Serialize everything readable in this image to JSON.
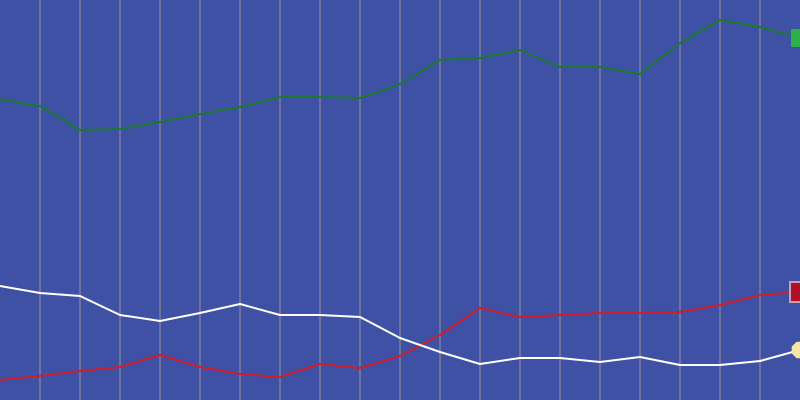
{
  "chart_data": {
    "type": "line",
    "title": "",
    "xlabel": "",
    "ylabel": "",
    "grid": {
      "vertical": true,
      "horizontal": false
    },
    "legend": "none",
    "background": "#3f51a5",
    "grid_color": "#7a7f9a",
    "x": [
      0,
      1,
      2,
      3,
      4,
      5,
      6,
      7,
      8,
      9,
      10,
      11,
      12,
      13,
      14,
      15,
      16,
      17,
      18,
      19,
      20
    ],
    "xlim": [
      0,
      20
    ],
    "ylim": [
      0,
      400
    ],
    "series": [
      {
        "color": "#1b7a2e",
        "marker_color": "#2bb04a",
        "end_marker": "square",
        "values": [
          301,
          294,
          270,
          271,
          278,
          286,
          293,
          303,
          303,
          302,
          316,
          340,
          342,
          350,
          333,
          333,
          326,
          357,
          380,
          373,
          362
        ]
      },
      {
        "color": "#d01c2c",
        "marker_color": "#b0102a",
        "end_marker": "square-outlined",
        "values": [
          20,
          24,
          29,
          33,
          45,
          33,
          26,
          23,
          36,
          32,
          44,
          65,
          92,
          83,
          85,
          87,
          87,
          88,
          95,
          105,
          108
        ]
      },
      {
        "color": "#ffffff",
        "marker_color": "#f6e3a8",
        "end_marker": "octagon",
        "values": [
          114,
          107,
          104,
          85,
          79,
          87,
          96,
          85,
          85,
          83,
          62,
          48,
          36,
          42,
          42,
          38,
          43,
          35,
          35,
          39,
          50
        ]
      }
    ]
  }
}
